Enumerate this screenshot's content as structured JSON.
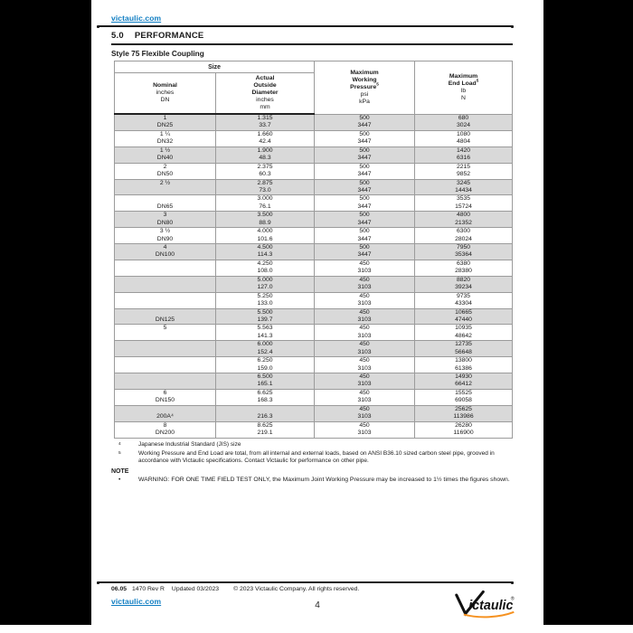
{
  "header": {
    "top_link": "victaulic.com",
    "section_number": "5.0",
    "section_title": "PERFORMANCE",
    "subtitle": "Style 75 Flexible Coupling"
  },
  "table": {
    "size_header": "Size",
    "columns": [
      {
        "title_lines": [
          "Nominal"
        ],
        "units": [
          "inches",
          "DN"
        ]
      },
      {
        "title_lines": [
          "Actual",
          "Outside",
          "Diameter"
        ],
        "units": [
          "inches",
          "mm"
        ]
      },
      {
        "title_lines": [
          "Maximum",
          "Working",
          "Pressure"
        ],
        "sup": "5",
        "units": [
          "psi",
          "kPa"
        ]
      },
      {
        "title_lines": [
          "Maximum",
          "End Load"
        ],
        "sup": "5",
        "units": [
          "lb",
          "N"
        ]
      }
    ],
    "rows": [
      {
        "shaded": true,
        "nominal": [
          "1",
          "DN25"
        ],
        "od": [
          "1.315",
          "33.7"
        ],
        "pressure": [
          "500",
          "3447"
        ],
        "end_load": [
          "680",
          "3024"
        ]
      },
      {
        "shaded": false,
        "nominal": [
          "1 ¼",
          "DN32"
        ],
        "od": [
          "1.660",
          "42.4"
        ],
        "pressure": [
          "500",
          "3447"
        ],
        "end_load": [
          "1080",
          "4804"
        ]
      },
      {
        "shaded": true,
        "nominal": [
          "1 ½",
          "DN40"
        ],
        "od": [
          "1.900",
          "48.3"
        ],
        "pressure": [
          "500",
          "3447"
        ],
        "end_load": [
          "1420",
          "6316"
        ]
      },
      {
        "shaded": false,
        "nominal": [
          "2",
          "DN50"
        ],
        "od": [
          "2.375",
          "60.3"
        ],
        "pressure": [
          "500",
          "3447"
        ],
        "end_load": [
          "2215",
          "9852"
        ]
      },
      {
        "shaded": true,
        "nominal": [
          "2 ½",
          ""
        ],
        "od": [
          "2.875",
          "73.0"
        ],
        "pressure": [
          "500",
          "3447"
        ],
        "end_load": [
          "3245",
          "14434"
        ]
      },
      {
        "shaded": false,
        "nominal": [
          "",
          "DN65"
        ],
        "od": [
          "3.000",
          "76.1"
        ],
        "pressure": [
          "500",
          "3447"
        ],
        "end_load": [
          "3535",
          "15724"
        ]
      },
      {
        "shaded": true,
        "nominal": [
          "3",
          "DN80"
        ],
        "od": [
          "3.500",
          "88.9"
        ],
        "pressure": [
          "500",
          "3447"
        ],
        "end_load": [
          "4800",
          "21352"
        ]
      },
      {
        "shaded": false,
        "nominal": [
          "3 ½",
          "DN90"
        ],
        "od": [
          "4.000",
          "101.6"
        ],
        "pressure": [
          "500",
          "3447"
        ],
        "end_load": [
          "6300",
          "28024"
        ]
      },
      {
        "shaded": true,
        "nominal": [
          "4",
          "DN100"
        ],
        "od": [
          "4.500",
          "114.3"
        ],
        "pressure": [
          "500",
          "3447"
        ],
        "end_load": [
          "7950",
          "35364"
        ]
      },
      {
        "shaded": false,
        "nominal": [
          "",
          ""
        ],
        "od": [
          "4.250",
          "108.0"
        ],
        "pressure": [
          "450",
          "3103"
        ],
        "end_load": [
          "6380",
          "28380"
        ]
      },
      {
        "shaded": true,
        "nominal": [
          "",
          ""
        ],
        "od": [
          "5.000",
          "127.0"
        ],
        "pressure": [
          "450",
          "3103"
        ],
        "end_load": [
          "8820",
          "39234"
        ]
      },
      {
        "shaded": false,
        "nominal": [
          "",
          ""
        ],
        "od": [
          "5.250",
          "133.0"
        ],
        "pressure": [
          "450",
          "3103"
        ],
        "end_load": [
          "9735",
          "43304"
        ]
      },
      {
        "shaded": true,
        "nominal": [
          "",
          "DN125"
        ],
        "od": [
          "5.500",
          "139.7"
        ],
        "pressure": [
          "450",
          "3103"
        ],
        "end_load": [
          "10665",
          "47440"
        ]
      },
      {
        "shaded": false,
        "nominal": [
          "5",
          ""
        ],
        "od": [
          "5.563",
          "141.3"
        ],
        "pressure": [
          "450",
          "3103"
        ],
        "end_load": [
          "10935",
          "48642"
        ]
      },
      {
        "shaded": true,
        "nominal": [
          "",
          ""
        ],
        "od": [
          "6.000",
          "152.4"
        ],
        "pressure": [
          "450",
          "3103"
        ],
        "end_load": [
          "12735",
          "56648"
        ]
      },
      {
        "shaded": false,
        "nominal": [
          "",
          ""
        ],
        "od": [
          "6.250",
          "159.0"
        ],
        "pressure": [
          "450",
          "3103"
        ],
        "end_load": [
          "13800",
          "61386"
        ]
      },
      {
        "shaded": true,
        "nominal": [
          "",
          ""
        ],
        "od": [
          "6.500",
          "165.1"
        ],
        "pressure": [
          "450",
          "3103"
        ],
        "end_load": [
          "14930",
          "66412"
        ]
      },
      {
        "shaded": false,
        "nominal": [
          "6",
          "DN150"
        ],
        "od": [
          "6.625",
          "168.3"
        ],
        "pressure": [
          "450",
          "3103"
        ],
        "end_load": [
          "15525",
          "69058"
        ]
      },
      {
        "shaded": true,
        "nominal": [
          "",
          "200A⁴"
        ],
        "od": [
          "",
          "216.3"
        ],
        "pressure": [
          "450",
          "3103"
        ],
        "end_load": [
          "25625",
          "113986"
        ]
      },
      {
        "shaded": false,
        "nominal": [
          "8",
          "DN200"
        ],
        "od": [
          "8.625",
          "219.1"
        ],
        "pressure": [
          "450",
          "3103"
        ],
        "end_load": [
          "26280",
          "116900"
        ]
      }
    ]
  },
  "footnotes": [
    {
      "marker": "4",
      "text": "Japanese Industrial Standard (JIS) size"
    },
    {
      "marker": "5",
      "text": "Working Pressure and End Load are total, from all internal and external loads, based on ANSI B36.10 sized carbon steel pipe, grooved in accordance with Victaulic specifications. Contact Victaulic for performance on other pipe."
    }
  ],
  "note": {
    "label": "NOTE",
    "bullet": "•",
    "text": "WARNING: FOR ONE TIME FIELD TEST ONLY, the Maximum Joint Working Pressure may be increased to 1½ times the figures shown."
  },
  "footer": {
    "pub_number": "06.05",
    "revision": "1470 Rev R",
    "updated": "Updated 03/2023",
    "copyright": "© 2023 Victaulic Company. All rights reserved.",
    "link": "victaulic.com",
    "page_number": "4",
    "logo_text": "ictaulic",
    "logo_registered": "®"
  },
  "colors": {
    "link_blue": "#0f7dc2",
    "row_shade": "#d9d9d9",
    "logo_orange": "#f59120",
    "frame_black": "#000000",
    "page_white": "#ffffff"
  }
}
